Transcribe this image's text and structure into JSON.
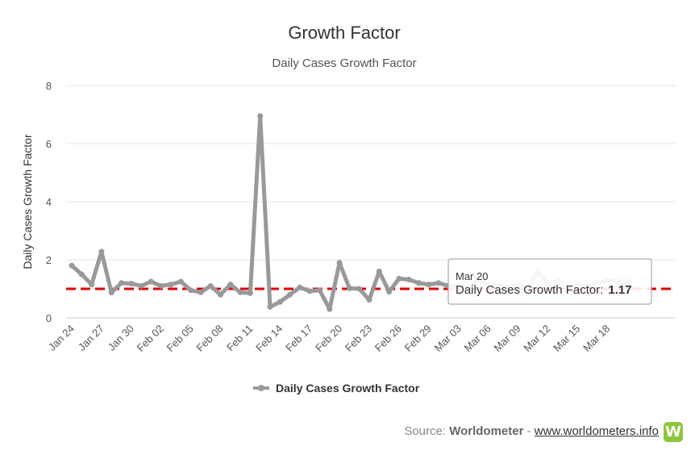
{
  "chart_data": {
    "type": "line",
    "title": "Growth Factor",
    "subtitle": "Daily Cases Growth Factor",
    "ylabel": "Daily Cases Growth Factor",
    "xlabel": "",
    "ylim": [
      0,
      8
    ],
    "yticks": [
      0,
      2,
      4,
      6,
      8
    ],
    "grid": true,
    "legend_position": "bottom",
    "x_tick_labels": [
      "Jan 24",
      "Jan 27",
      "Jan 30",
      "Feb 02",
      "Feb 05",
      "Feb 08",
      "Feb 11",
      "Feb 14",
      "Feb 17",
      "Feb 20",
      "Feb 23",
      "Feb 26",
      "Feb 29",
      "Mar 03",
      "Mar 06",
      "Mar 09",
      "Mar 12",
      "Mar 15",
      "Mar 18"
    ],
    "x": [
      "Jan 24",
      "Jan 25",
      "Jan 26",
      "Jan 27",
      "Jan 28",
      "Jan 29",
      "Jan 30",
      "Jan 31",
      "Feb 01",
      "Feb 02",
      "Feb 03",
      "Feb 04",
      "Feb 05",
      "Feb 06",
      "Feb 07",
      "Feb 08",
      "Feb 09",
      "Feb 10",
      "Feb 11",
      "Feb 12",
      "Feb 13",
      "Feb 14",
      "Feb 15",
      "Feb 16",
      "Feb 17",
      "Feb 18",
      "Feb 19",
      "Feb 20",
      "Feb 21",
      "Feb 22",
      "Feb 23",
      "Feb 24",
      "Feb 25",
      "Feb 26",
      "Feb 27",
      "Feb 28",
      "Feb 29",
      "Mar 01",
      "Mar 02",
      "Mar 03",
      "Mar 04",
      "Mar 05",
      "Mar 06",
      "Mar 07",
      "Mar 08",
      "Mar 09",
      "Mar 10",
      "Mar 11",
      "Mar 12",
      "Mar 13",
      "Mar 14",
      "Mar 15",
      "Mar 16",
      "Mar 17",
      "Mar 18",
      "Mar 19",
      "Mar 20"
    ],
    "series": [
      {
        "name": "Daily Cases Growth Factor",
        "color": "#999999",
        "values": [
          1.8,
          1.5,
          1.15,
          2.28,
          0.87,
          1.2,
          1.18,
          1.1,
          1.25,
          1.1,
          1.15,
          1.25,
          0.95,
          0.88,
          1.1,
          0.8,
          1.15,
          0.88,
          0.85,
          6.95,
          0.38,
          0.55,
          0.8,
          1.05,
          0.92,
          0.95,
          0.3,
          1.9,
          1.02,
          1.0,
          0.62,
          1.6,
          0.9,
          1.35,
          1.32,
          1.2,
          1.15,
          1.2,
          1.1,
          1.1,
          1.0,
          1.35,
          1.15,
          1.1,
          1.05,
          1.1,
          1.05,
          1.6,
          1.15,
          1.3,
          1.05,
          1.15,
          1.1,
          1.2,
          1.3,
          1.25,
          1.17
        ]
      }
    ],
    "reference_line": {
      "value": 1,
      "color": "#dd0000",
      "style": "dashed"
    },
    "tooltip": {
      "date": "Mar 20",
      "label": "Daily Cases Growth Factor:",
      "value": "1.17"
    }
  },
  "credit": {
    "prefix": "Source: ",
    "source_name": "Worldometer",
    "separator": " - ",
    "url_text": "www.worldometers.info",
    "logo_letter": "W"
  }
}
